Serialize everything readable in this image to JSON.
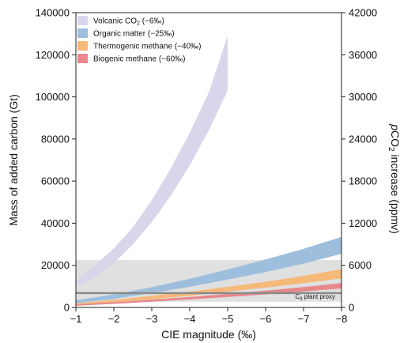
{
  "chart_data": {
    "type": "area",
    "xlabel": "CIE magnitude (‰)",
    "ylabel": "Mass of added carbon (Gt)",
    "y2label_prefix": "p",
    "y2label_main": "CO",
    "y2label_sub": "2",
    "y2label_rest": " increase (ppmv)",
    "xlim": [
      -1,
      -8
    ],
    "ylim": [
      0,
      140000
    ],
    "y2lim": [
      0,
      42000
    ],
    "xticks": [
      -1,
      -2,
      -3,
      -4,
      -5,
      -6,
      -7,
      -8
    ],
    "xtick_labels": [
      "−1",
      "−2",
      "−3",
      "−4",
      "−5",
      "−6",
      "−7",
      "−8"
    ],
    "yticks": [
      0,
      20000,
      40000,
      60000,
      80000,
      100000,
      120000,
      140000
    ],
    "ytick_labels": [
      "0",
      "20000",
      "40000",
      "60000",
      "80000",
      "100000",
      "120000",
      "140000"
    ],
    "y2ticks": [
      0,
      6000,
      12000,
      18000,
      24000,
      30000,
      36000,
      42000
    ],
    "y2tick_labels": [
      "0",
      "6000",
      "12000",
      "18000",
      "24000",
      "30000",
      "36000",
      "42000"
    ],
    "legend_position": "top-left",
    "series": [
      {
        "name_main": "Volcanic CO",
        "name_sub": "2",
        "name_rest": " (−6‰)",
        "color": "#d9d6ec",
        "x": [
          -1,
          -1.5,
          -2,
          -2.5,
          -3,
          -3.5,
          -4,
          -4.5,
          -5
        ],
        "lower": [
          9500,
          14500,
          21000,
          30000,
          40500,
          53000,
          67500,
          84000,
          103000
        ],
        "upper": [
          13000,
          20000,
          28000,
          38000,
          51000,
          66000,
          83000,
          102000,
          129000
        ]
      },
      {
        "name": "Organic matter (−25‰)",
        "color": "#9dbedd",
        "x": [
          -1,
          -2,
          -3,
          -4,
          -5,
          -6,
          -7,
          -8
        ],
        "lower": [
          2000,
          4000,
          6800,
          9800,
          13200,
          16800,
          20800,
          25500
        ],
        "upper": [
          3400,
          6200,
          9600,
          13600,
          18000,
          22800,
          27800,
          33500
        ]
      },
      {
        "name": "Thermogenic methane (−40‰)",
        "color": "#f5b97a",
        "x": [
          -1,
          -2,
          -3,
          -4,
          -5,
          -6,
          -7,
          -8
        ],
        "lower": [
          1200,
          2500,
          3900,
          5600,
          7500,
          9400,
          11500,
          13800
        ],
        "upper": [
          2000,
          3600,
          5500,
          7500,
          9800,
          12200,
          15000,
          18200
        ]
      },
      {
        "name": "Biogenic methane (−60‰)",
        "color": "#e8888c",
        "x": [
          -1,
          -2,
          -3,
          -4,
          -5,
          -6,
          -7,
          -8
        ],
        "lower": [
          800,
          1700,
          2700,
          3800,
          5000,
          6200,
          7600,
          9000
        ],
        "upper": [
          1400,
          2500,
          3700,
          5000,
          6400,
          8000,
          9700,
          11600
        ]
      }
    ],
    "reference_band": {
      "label_main": "C",
      "label_sub": "3",
      "label_rest": " plant proxy",
      "y_min": 2700,
      "y_max": 22500,
      "center_line": 6800,
      "band_color": "#e0e0e0",
      "line_color": "#8a8a8a"
    }
  }
}
